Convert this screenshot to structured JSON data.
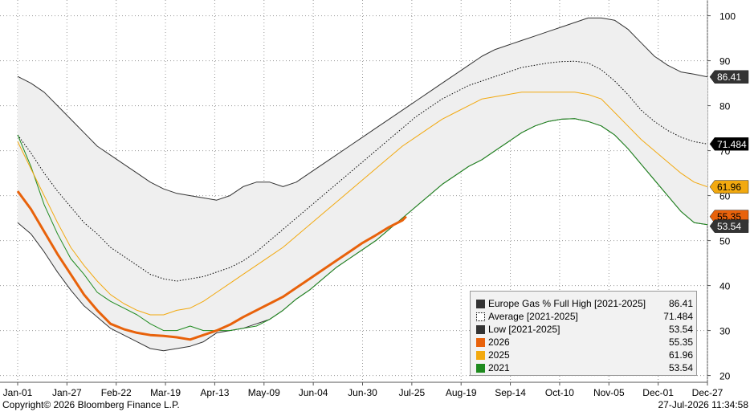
{
  "chart_data": {
    "type": "line",
    "x_ticks": [
      "Jan-01",
      "Jan-27",
      "Feb-22",
      "Mar-19",
      "Apr-13",
      "May-09",
      "Jun-04",
      "Jun-30",
      "Jul-25",
      "Aug-19",
      "Sep-14",
      "Oct-10",
      "Nov-05",
      "Dec-01",
      "Dec-27"
    ],
    "y_ticks": [
      20,
      30,
      40,
      50,
      60,
      70,
      80,
      90,
      100
    ],
    "ylim": [
      18.5,
      103.5
    ],
    "grid": true,
    "legend_position": "bottom-right",
    "series": [
      {
        "name": "Europe Gas % Full High [2021-2025]",
        "color": "#333333",
        "style": "solid",
        "last_value": "86.41",
        "x": [
          0,
          7,
          14,
          21,
          28,
          35,
          42,
          49,
          56,
          63,
          70,
          77,
          84,
          91,
          98,
          105,
          112,
          119,
          126,
          133,
          140,
          147,
          154,
          161,
          168,
          175,
          182,
          189,
          196,
          203,
          210,
          217,
          224,
          231,
          238,
          245,
          252,
          259,
          266,
          273,
          280,
          287,
          294,
          301,
          308,
          315,
          322,
          329,
          336,
          343,
          350,
          357,
          364
        ],
        "y": [
          86.5,
          85,
          83,
          80,
          77,
          74,
          71,
          69,
          67,
          65,
          63,
          61.5,
          60.5,
          60,
          59.5,
          59,
          60,
          62,
          63,
          63,
          62,
          63,
          65,
          67,
          69,
          71,
          73,
          75,
          77,
          79,
          81,
          83,
          85,
          87,
          89,
          91,
          92.5,
          93.5,
          94.5,
          95.5,
          96.5,
          97.5,
          98.5,
          99.5,
          99.5,
          99,
          97,
          94,
          91,
          89,
          87.5,
          87,
          86.41
        ]
      },
      {
        "name": "Average  [2021-2025]",
        "color": "#000000",
        "style": "dotted",
        "last_value": "71.484",
        "x": [
          0,
          7,
          14,
          21,
          28,
          35,
          42,
          49,
          56,
          63,
          70,
          77,
          84,
          91,
          98,
          105,
          112,
          119,
          126,
          133,
          140,
          147,
          154,
          161,
          168,
          175,
          182,
          189,
          196,
          203,
          210,
          217,
          224,
          231,
          238,
          245,
          252,
          259,
          266,
          273,
          280,
          287,
          294,
          301,
          308,
          315,
          322,
          329,
          336,
          343,
          350,
          357,
          364
        ],
        "y": [
          73.5,
          69.5,
          65,
          61,
          57.5,
          54,
          51.5,
          48.5,
          46.5,
          44.5,
          42.5,
          41.5,
          41,
          41.5,
          42,
          43,
          44,
          45.5,
          47.5,
          50,
          52.5,
          55,
          57.5,
          60,
          62.5,
          65,
          67.5,
          70,
          72.5,
          75,
          77.5,
          79.5,
          81.5,
          83,
          84.5,
          85.5,
          86.5,
          87.5,
          88.5,
          89,
          89.5,
          89.8,
          89.9,
          89.5,
          88,
          85.5,
          82.5,
          79,
          76.5,
          74.5,
          73,
          72,
          71.484
        ]
      },
      {
        "name": "Low   [2021-2025]",
        "color": "#333333",
        "style": "solid",
        "last_value": "53.54",
        "x": [
          0,
          7,
          14,
          21,
          28,
          35,
          42,
          49,
          56,
          63,
          70,
          77,
          84,
          91,
          98,
          105,
          112,
          119,
          126,
          133,
          140,
          147,
          154,
          161,
          168,
          175,
          182,
          189,
          196,
          203,
          210,
          217,
          224,
          231,
          238,
          245,
          252,
          259,
          266,
          273,
          280,
          287,
          294,
          301,
          308,
          315,
          322,
          329,
          336,
          343,
          350,
          357,
          364
        ],
        "y": [
          54,
          51.5,
          47.5,
          43,
          39,
          35.5,
          33,
          30.5,
          29,
          27.5,
          26,
          25.5,
          26,
          26.5,
          27.5,
          29.5,
          30,
          30.5,
          31.5,
          32.5,
          34.5,
          37,
          39,
          41.5,
          44,
          46,
          48,
          50,
          52.5,
          55,
          57.5,
          60,
          62.5,
          64.5,
          66.5,
          68,
          70,
          72,
          74,
          75.5,
          76.5,
          77,
          77.1,
          76.5,
          75.5,
          73.5,
          70.5,
          67,
          63.5,
          60,
          56.5,
          54,
          53.54
        ]
      },
      {
        "name": "2026",
        "color": "#e8620b",
        "style": "solid",
        "last_value": "55.35",
        "x": [
          0,
          7,
          14,
          21,
          28,
          35,
          42,
          49,
          56,
          63,
          70,
          77,
          84,
          91,
          98,
          105,
          112,
          119,
          126,
          133,
          140,
          147,
          154,
          161,
          168,
          175,
          182,
          189,
          196,
          203,
          205
        ],
        "y": [
          61,
          57,
          52,
          47,
          42.5,
          38,
          34.5,
          31.5,
          30.3,
          29.5,
          29,
          28.8,
          28.5,
          28,
          29,
          30,
          31.3,
          33,
          34.5,
          36,
          37.5,
          39.5,
          41.5,
          43.5,
          45.5,
          47.5,
          49.5,
          51.2,
          53,
          54.5,
          55.35
        ]
      },
      {
        "name": "2025",
        "color": "#f2a90f",
        "style": "solid",
        "last_value": "61.96",
        "x": [
          0,
          7,
          14,
          21,
          28,
          35,
          42,
          49,
          56,
          63,
          70,
          77,
          84,
          91,
          98,
          105,
          112,
          119,
          126,
          133,
          140,
          147,
          154,
          161,
          168,
          175,
          182,
          189,
          196,
          203,
          210,
          217,
          224,
          231,
          238,
          245,
          252,
          259,
          266,
          273,
          280,
          287,
          294,
          301,
          308,
          315,
          322,
          329,
          336,
          343,
          350,
          357,
          364
        ],
        "y": [
          72,
          66,
          60,
          54,
          48.5,
          44.5,
          41,
          38,
          36,
          34.5,
          33.5,
          33.5,
          34.5,
          35,
          36.5,
          38.5,
          40.5,
          42.5,
          44.5,
          46.5,
          48.5,
          51,
          53.5,
          56,
          58.5,
          61,
          63.5,
          66,
          68.5,
          71,
          73,
          75,
          77,
          78.5,
          80,
          81.5,
          82,
          82.5,
          83,
          83,
          83,
          83,
          83,
          82.5,
          81.5,
          78.5,
          75.5,
          72.5,
          70,
          67.5,
          65,
          63,
          61.96
        ]
      },
      {
        "name": "2021",
        "color": "#1e8a1e",
        "style": "solid",
        "last_value": "53.54",
        "x": [
          0,
          7,
          14,
          21,
          28,
          35,
          42,
          49,
          56,
          63,
          70,
          77,
          84,
          91,
          98,
          105,
          112,
          119,
          126,
          133,
          140,
          147,
          154,
          161,
          168,
          175,
          182,
          189,
          196,
          203,
          210,
          217,
          224,
          231,
          238,
          245,
          252,
          259,
          266,
          273,
          280,
          287,
          294,
          301,
          308,
          315,
          322,
          329,
          336,
          343,
          350,
          357,
          364
        ],
        "y": [
          73.5,
          66.5,
          58,
          51.5,
          46,
          42.5,
          38.5,
          36.5,
          35,
          33.5,
          31.5,
          30,
          30,
          31,
          30,
          30,
          30,
          30.5,
          31,
          32.5,
          34.5,
          37,
          39,
          41.5,
          44,
          46,
          48,
          50,
          52.5,
          55,
          57.5,
          60,
          62.5,
          64.5,
          66.5,
          68,
          70,
          72,
          74,
          75.5,
          76.5,
          77,
          77.1,
          76.5,
          75.5,
          73.5,
          70.5,
          67,
          63.5,
          60,
          56.5,
          54,
          53.54
        ]
      }
    ],
    "value_tags": [
      {
        "text": "86.41",
        "value": 86.41,
        "bg": "#333333",
        "fg": "#ffffff"
      },
      {
        "text": "71.484",
        "value": 71.484,
        "bg": "#000000",
        "fg": "#ffffff"
      },
      {
        "text": "61.96",
        "value": 61.96,
        "bg": "#f2a90f",
        "fg": "#000000"
      },
      {
        "text": "55.35",
        "value": 55.35,
        "bg": "#e8620b",
        "fg": "#000000"
      },
      {
        "text": "53.54",
        "value": 53.54,
        "bg": "#333333",
        "fg": "#ffffff"
      }
    ]
  },
  "legend": [
    {
      "label": "Europe Gas % Full High [2021-2025]",
      "value": "86.41",
      "color": "#333333",
      "style": "solid"
    },
    {
      "label": "Average  [2021-2025]",
      "value": "71.484",
      "color": "#000000",
      "style": "dotted"
    },
    {
      "label": "Low   [2021-2025]",
      "value": "53.54",
      "color": "#333333",
      "style": "solid"
    },
    {
      "label": "2026",
      "value": "55.35",
      "color": "#e8620b",
      "style": "solid"
    },
    {
      "label": "2025",
      "value": "61.96",
      "color": "#f2a90f",
      "style": "solid"
    },
    {
      "label": "2021",
      "value": "53.54",
      "color": "#1e8a1e",
      "style": "solid"
    }
  ],
  "footer": {
    "copyright": "Copyright© 2026 Bloomberg Finance L.P.",
    "timestamp": "27-Jul-2026 11:34:58"
  }
}
